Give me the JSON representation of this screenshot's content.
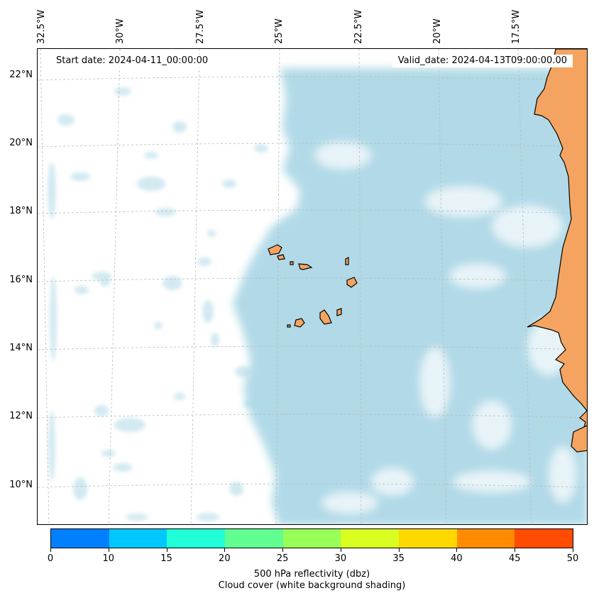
{
  "map": {
    "start_date": "Start date: 2024-04-11_00:00:00",
    "valid_date": "Valid_date: 2024-04-13T09:00:00.00",
    "lon_labels": [
      "32.5°W",
      "30°W",
      "27.5°W",
      "25°W",
      "22.5°W",
      "20°W",
      "17.5°W"
    ],
    "lat_labels": [
      "22°N",
      "20°N",
      "18°N",
      "16°N",
      "14°N",
      "12°N",
      "10°N"
    ],
    "cloud_color": "#add8e6",
    "land_color": "#f4a460",
    "grid": true
  },
  "colorbar": {
    "ticks": [
      "0",
      "10",
      "15",
      "20",
      "25",
      "30",
      "35",
      "40",
      "45",
      "50"
    ],
    "colors": [
      "#0080ff",
      "#00c8ff",
      "#20ffd8",
      "#60ff90",
      "#98ff58",
      "#d8ff20",
      "#ffd800",
      "#ff8c00",
      "#ff4c00"
    ],
    "label_line1": "500 hPa reflectivity (dbz)",
    "label_line2": "Cloud cover (white background shading)"
  }
}
